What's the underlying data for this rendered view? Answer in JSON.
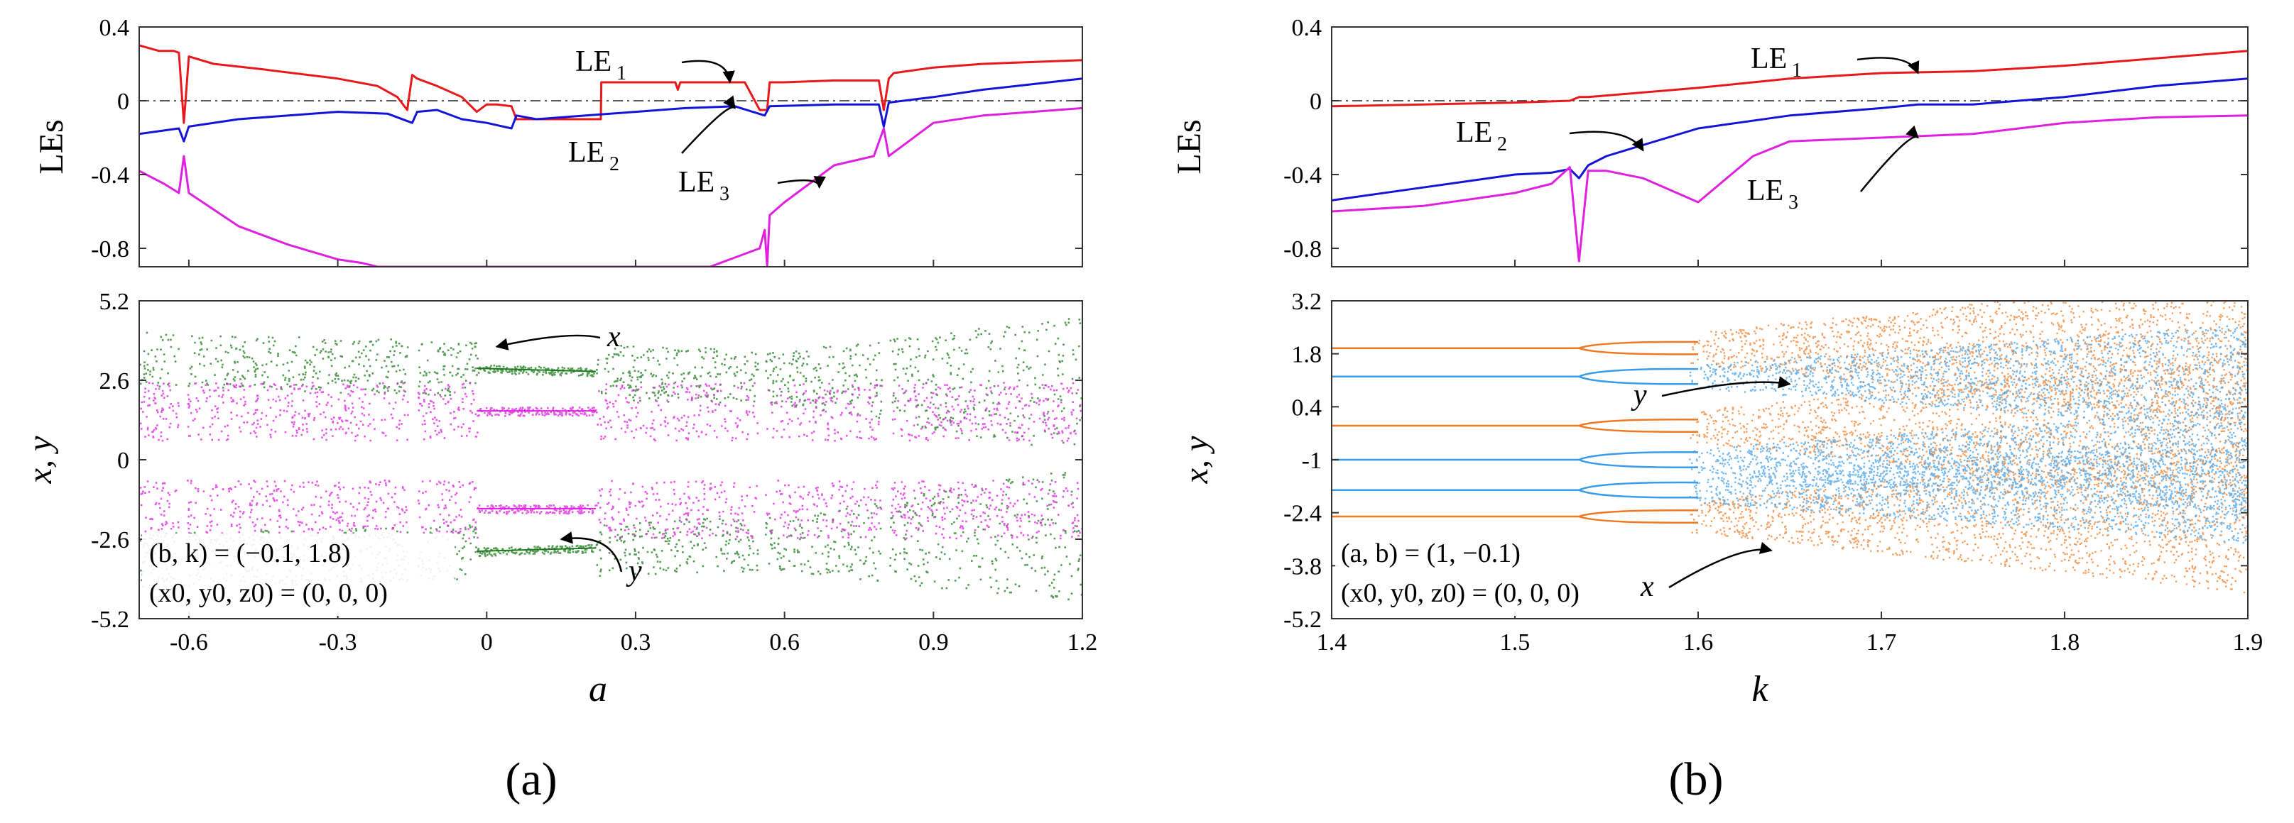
{
  "colors": {
    "le1": "#e8191c",
    "le2": "#1414d8",
    "le3": "#e020e0",
    "x_a": "#1e7a1e",
    "y_a": "#e020e0",
    "x_b": "#f07820",
    "y_b": "#3a9be8"
  },
  "panels": {
    "a": {
      "label": "(a)"
    },
    "b": {
      "label": "(b)"
    }
  },
  "chart_data": [
    {
      "id": "a-top",
      "type": "line",
      "title": "",
      "xlabel": "",
      "ylabel": "LEs",
      "xlim": [
        -0.7,
        1.2
      ],
      "ylim": [
        -0.9,
        0.4
      ],
      "yticks": [
        "0.4",
        "0",
        "-0.4",
        "-0.8"
      ],
      "ytick_values": [
        0.4,
        0,
        -0.4,
        -0.8
      ],
      "series": [
        {
          "name": "LE1",
          "sub": "1",
          "color": "#e8191c",
          "x": [
            -0.7,
            -0.66,
            -0.63,
            -0.62,
            -0.61,
            -0.6,
            -0.55,
            -0.45,
            -0.3,
            -0.22,
            -0.18,
            -0.16,
            -0.15,
            -0.14,
            -0.1,
            -0.05,
            -0.02,
            0,
            0.02,
            0.05,
            0.06,
            0.1,
            0.15,
            0.2,
            0.23,
            0.231,
            0.3,
            0.38,
            0.385,
            0.39,
            0.45,
            0.52,
            0.55,
            0.565,
            0.57,
            0.6,
            0.7,
            0.79,
            0.8,
            0.81,
            0.82,
            0.9,
            1.0,
            1.1,
            1.2
          ],
          "y": [
            0.3,
            0.27,
            0.27,
            0.26,
            -0.12,
            0.24,
            0.2,
            0.17,
            0.12,
            0.08,
            0.02,
            -0.05,
            0.14,
            0.12,
            0.08,
            0.02,
            -0.06,
            -0.02,
            -0.02,
            -0.03,
            -0.1,
            -0.1,
            -0.1,
            -0.1,
            -0.1,
            0.1,
            0.1,
            0.1,
            0.06,
            0.1,
            0.1,
            0.1,
            -0.05,
            -0.05,
            0.1,
            0.1,
            0.11,
            0.11,
            -0.05,
            0.12,
            0.15,
            0.18,
            0.2,
            0.21,
            0.22
          ]
        },
        {
          "name": "LE2",
          "sub": "2",
          "color": "#1414d8",
          "x": [
            -0.7,
            -0.62,
            -0.61,
            -0.6,
            -0.5,
            -0.3,
            -0.2,
            -0.15,
            -0.14,
            -0.1,
            -0.05,
            0,
            0.05,
            0.06,
            0.1,
            0.2,
            0.3,
            0.4,
            0.5,
            0.56,
            0.57,
            0.7,
            0.79,
            0.8,
            0.81,
            0.9,
            1.0,
            1.1,
            1.2
          ],
          "y": [
            -0.18,
            -0.15,
            -0.22,
            -0.14,
            -0.1,
            -0.06,
            -0.07,
            -0.12,
            -0.06,
            -0.05,
            -0.1,
            -0.12,
            -0.15,
            -0.08,
            -0.1,
            -0.08,
            -0.06,
            -0.04,
            -0.03,
            -0.08,
            -0.03,
            -0.02,
            -0.02,
            -0.14,
            -0.01,
            0.02,
            0.06,
            0.09,
            0.12
          ]
        },
        {
          "name": "LE3",
          "sub": "3",
          "color": "#e020e0",
          "x": [
            -0.7,
            -0.65,
            -0.62,
            -0.61,
            -0.6,
            -0.5,
            -0.4,
            -0.3,
            -0.25,
            -0.22,
            0.45,
            0.5,
            0.55,
            0.56,
            0.565,
            0.57,
            0.6,
            0.65,
            0.7,
            0.78,
            0.8,
            0.81,
            0.85,
            0.9,
            1.0,
            1.1,
            1.2
          ],
          "y": [
            -0.38,
            -0.45,
            -0.5,
            -0.3,
            -0.5,
            -0.68,
            -0.78,
            -0.86,
            -0.88,
            -0.9,
            -0.9,
            -0.85,
            -0.8,
            -0.7,
            -0.9,
            -0.62,
            -0.55,
            -0.45,
            -0.35,
            -0.3,
            -0.15,
            -0.3,
            -0.22,
            -0.12,
            -0.08,
            -0.06,
            -0.04
          ]
        }
      ],
      "annotations": [
        {
          "text": "LE",
          "sub": "1",
          "points_to": [
            0.49,
            0.1
          ]
        },
        {
          "text": "LE",
          "sub": "2",
          "points_to": [
            0.5,
            -0.04
          ]
        },
        {
          "text": "LE",
          "sub": "3",
          "points_to": [
            0.67,
            -0.47
          ]
        }
      ],
      "reference_line": {
        "y": 0,
        "style": "dash-dot"
      }
    },
    {
      "id": "a-bottom",
      "type": "scatter",
      "xlabel": "a",
      "ylabel": "x, y",
      "xlim": [
        -0.7,
        1.2
      ],
      "ylim": [
        -5.2,
        5.2
      ],
      "xticks": [
        "-0.6",
        "-0.3",
        "0",
        "0.3",
        "0.6",
        "0.9",
        "1.2"
      ],
      "xtick_values": [
        -0.6,
        -0.3,
        0,
        0.3,
        0.6,
        0.9,
        1.2
      ],
      "yticks": [
        "5.2",
        "2.6",
        "0",
        "-2.6",
        "-5.2"
      ],
      "ytick_values": [
        5.2,
        2.6,
        0,
        -2.6,
        -5.2
      ],
      "series": [
        {
          "name": "x",
          "color": "#1e7a1e",
          "description": "bifurcation diagram of x, bands near +/-2.6 widening to +/-5 at a=1.2"
        },
        {
          "name": "y",
          "color": "#e020e0",
          "description": "bifurcation diagram of y, bands near +/-1.5"
        }
      ],
      "annotations": [
        {
          "text": "x",
          "points_to": [
            0.02,
            3.7
          ]
        },
        {
          "text": "y",
          "points_to": [
            0.15,
            -2.6
          ]
        }
      ],
      "params": [
        {
          "line": "(b, k) = (−0.1, 1.8)"
        },
        {
          "line": "(x0, y0, z0) = (0, 0, 0)"
        }
      ]
    },
    {
      "id": "b-top",
      "type": "line",
      "xlabel": "",
      "ylabel": "LEs",
      "xlim": [
        1.4,
        1.9
      ],
      "ylim": [
        -0.9,
        0.4
      ],
      "yticks": [
        "0.4",
        "0",
        "-0.4",
        "-0.8"
      ],
      "ytick_values": [
        0.4,
        0,
        -0.4,
        -0.8
      ],
      "series": [
        {
          "name": "LE1",
          "sub": "1",
          "color": "#e8191c",
          "x": [
            1.4,
            1.45,
            1.5,
            1.53,
            1.535,
            1.54,
            1.6,
            1.65,
            1.7,
            1.75,
            1.8,
            1.85,
            1.9
          ],
          "y": [
            -0.03,
            -0.02,
            -0.01,
            0,
            0.02,
            0.02,
            0.07,
            0.12,
            0.15,
            0.16,
            0.19,
            0.23,
            0.27
          ]
        },
        {
          "name": "LE2",
          "sub": "2",
          "color": "#1414d8",
          "x": [
            1.4,
            1.45,
            1.5,
            1.52,
            1.53,
            1.535,
            1.54,
            1.55,
            1.6,
            1.65,
            1.7,
            1.72,
            1.75,
            1.8,
            1.85,
            1.9
          ],
          "y": [
            -0.54,
            -0.47,
            -0.4,
            -0.39,
            -0.37,
            -0.42,
            -0.35,
            -0.3,
            -0.15,
            -0.08,
            -0.04,
            -0.02,
            -0.02,
            0.02,
            0.08,
            0.12
          ]
        },
        {
          "name": "LE3",
          "sub": "3",
          "color": "#e020e0",
          "x": [
            1.4,
            1.45,
            1.5,
            1.52,
            1.53,
            1.535,
            1.54,
            1.55,
            1.57,
            1.6,
            1.63,
            1.65,
            1.7,
            1.75,
            1.8,
            1.85,
            1.9
          ],
          "y": [
            -0.6,
            -0.57,
            -0.5,
            -0.45,
            -0.36,
            -0.87,
            -0.38,
            -0.38,
            -0.42,
            -0.55,
            -0.3,
            -0.22,
            -0.2,
            -0.18,
            -0.12,
            -0.09,
            -0.08
          ]
        }
      ],
      "annotations": [
        {
          "text": "LE",
          "sub": "1",
          "points_to": [
            1.72,
            0.15
          ]
        },
        {
          "text": "LE",
          "sub": "2",
          "points_to": [
            1.57,
            -0.27
          ]
        },
        {
          "text": "LE",
          "sub": "3",
          "points_to": [
            1.72,
            -0.2
          ]
        }
      ],
      "reference_line": {
        "y": 0,
        "style": "dash-dot"
      }
    },
    {
      "id": "b-bottom",
      "type": "scatter",
      "xlabel": "k",
      "ylabel": "x, y",
      "xlim": [
        1.4,
        1.9
      ],
      "ylim": [
        -5.2,
        3.2
      ],
      "xticks": [
        "1.4",
        "1.5",
        "1.6",
        "1.7",
        "1.8",
        "1.9"
      ],
      "xtick_values": [
        1.4,
        1.5,
        1.6,
        1.7,
        1.8,
        1.9
      ],
      "yticks": [
        "3.2",
        "1.8",
        "0.4",
        "-1",
        "-2.4",
        "-3.8",
        "-5.2"
      ],
      "ytick_values": [
        3.2,
        1.8,
        0.4,
        -1,
        -2.4,
        -3.8,
        -5.2
      ],
      "series": [
        {
          "name": "x",
          "color": "#f07820",
          "branches": [
            1.95,
            -0.1,
            -2.5
          ],
          "description": "period-3 orbit doubling after k=1.535, chaotic after k~1.62"
        },
        {
          "name": "y",
          "color": "#3a9be8",
          "branches": [
            1.2,
            -1.0,
            -1.8
          ],
          "description": "period-3 orbit doubling after k=1.535, chaotic after k~1.62"
        }
      ],
      "annotations": [
        {
          "text": "y",
          "points_to": [
            1.65,
            1.0
          ]
        },
        {
          "text": "x",
          "points_to": [
            1.64,
            -3.4
          ]
        }
      ],
      "params": [
        {
          "line": "(a, b) = (1, −0.1)"
        },
        {
          "line": "(x0, y0, z0) = (0, 0, 0)"
        }
      ]
    }
  ]
}
